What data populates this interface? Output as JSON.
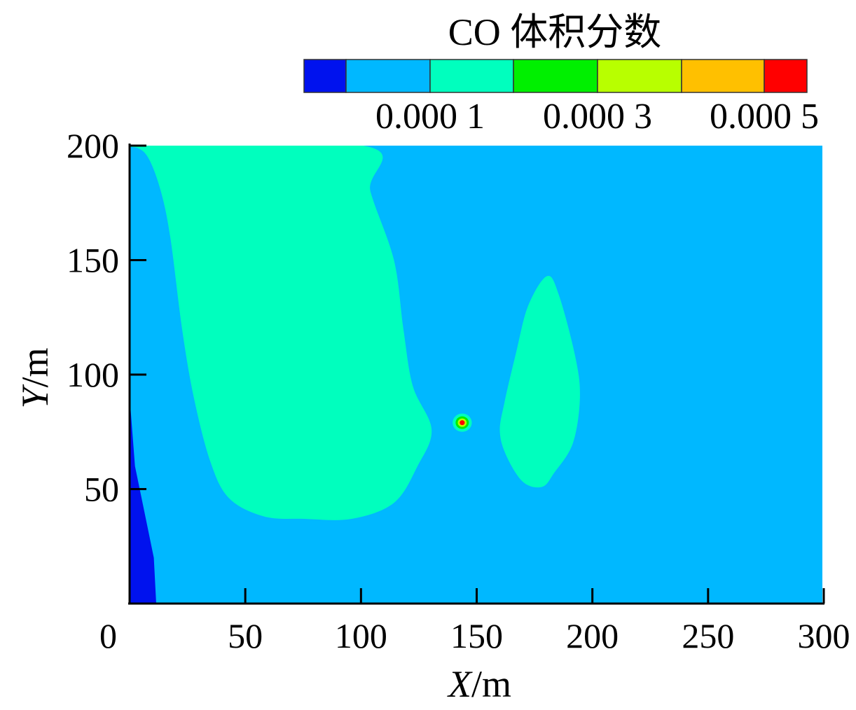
{
  "chart_data": {
    "type": "heatmap",
    "title": "CO 体积分数",
    "xlabel": {
      "var": "X",
      "unit": "/m"
    },
    "ylabel": {
      "var": "Y",
      "unit": "/m"
    },
    "xlim": [
      0,
      300
    ],
    "ylim": [
      0,
      200
    ],
    "x_ticks": [
      0,
      50,
      100,
      150,
      200,
      250,
      300
    ],
    "y_ticks": [
      50,
      100,
      150,
      200
    ],
    "x_tick_labels": [
      "0",
      "50",
      "100",
      "150",
      "200",
      "250",
      "300"
    ],
    "y_tick_labels": [
      "50",
      "100",
      "150",
      "200"
    ],
    "colorbar": {
      "levels": [
        "#0012ee",
        "#00b8ff",
        "#00ffbe",
        "#00f000",
        "#b8ff00",
        "#ffc000",
        "#ff0000"
      ],
      "labels": [
        {
          "text": "0.000 1",
          "after_level": 1
        },
        {
          "text": "0.000 3",
          "after_level": 3
        },
        {
          "text": "0.000 5",
          "after_level": 5
        }
      ]
    },
    "background_level": 1,
    "regions": [
      {
        "name": "low-concentration-strip-left",
        "level": 0,
        "points": [
          [
            0,
            200
          ],
          [
            1,
            200
          ],
          [
            2,
            190
          ],
          [
            4,
            150
          ],
          [
            5,
            100
          ],
          [
            8,
            60
          ],
          [
            12,
            40
          ],
          [
            16,
            20
          ],
          [
            17,
            0
          ],
          [
            0,
            0
          ]
        ]
      },
      {
        "name": "main-plume",
        "level": 2,
        "points": [
          [
            1,
            200
          ],
          [
            105,
            200
          ],
          [
            108,
            180
          ],
          [
            118,
            150
          ],
          [
            122,
            120
          ],
          [
            126,
            95
          ],
          [
            134,
            76
          ],
          [
            128,
            60
          ],
          [
            118,
            44
          ],
          [
            100,
            37
          ],
          [
            80,
            37
          ],
          [
            63,
            38
          ],
          [
            48,
            46
          ],
          [
            40,
            62
          ],
          [
            33,
            90
          ],
          [
            28,
            120
          ],
          [
            23,
            160
          ],
          [
            19,
            180
          ],
          [
            14,
            194
          ],
          [
            9,
            199
          ]
        ]
      },
      {
        "name": "secondary-plume",
        "level": 2,
        "points": [
          [
            183,
            143
          ],
          [
            188,
            135
          ],
          [
            195,
            108
          ],
          [
            197,
            90
          ],
          [
            194,
            70
          ],
          [
            186,
            57
          ],
          [
            181,
            51
          ],
          [
            173,
            53
          ],
          [
            166,
            64
          ],
          [
            163,
            75
          ],
          [
            165,
            88
          ],
          [
            170,
            110
          ],
          [
            175,
            130
          ]
        ]
      }
    ],
    "hotspot": {
      "x": 147,
      "y": 79,
      "rings": [
        2,
        3,
        4,
        6
      ]
    }
  }
}
